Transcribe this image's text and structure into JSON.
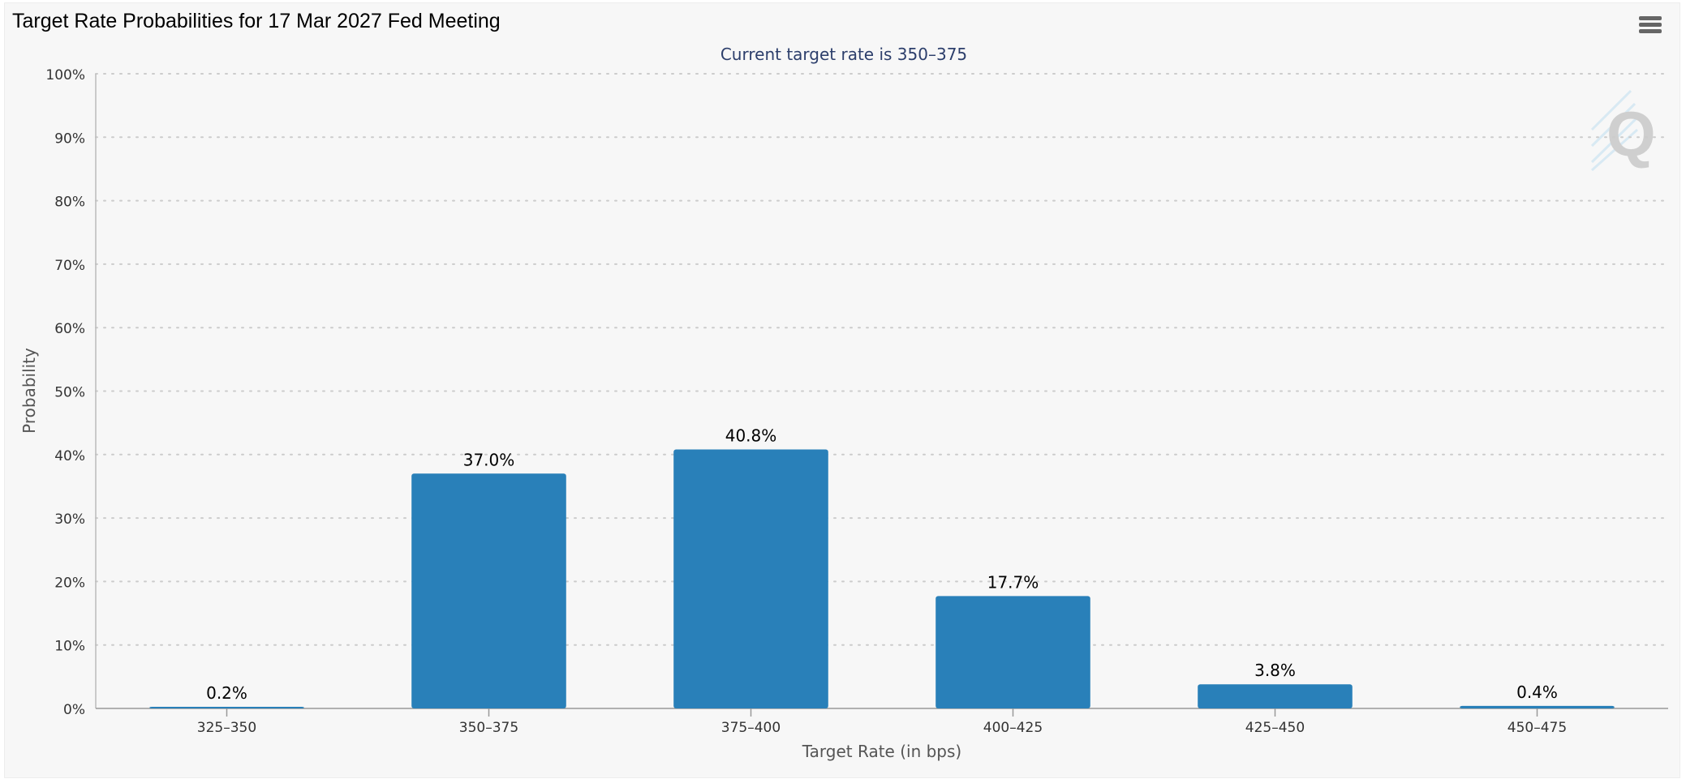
{
  "header": {
    "title": "Target Rate Probabilities for 17 Mar 2027 Fed Meeting",
    "menu_icon": "hamburger-menu-icon",
    "watermark_icon": "q-logo-icon"
  },
  "chart_data": {
    "type": "bar",
    "title": "Target Rate Probabilities for 17 Mar 2027 Fed Meeting",
    "subtitle": "Current target rate is 350–375",
    "xlabel": "Target Rate (in bps)",
    "ylabel": "Probability",
    "categories": [
      "325–350",
      "350–375",
      "375–400",
      "400–425",
      "425–450",
      "450–475"
    ],
    "values": [
      0.2,
      37.0,
      40.8,
      17.7,
      3.8,
      0.4
    ],
    "data_labels": [
      "0.2%",
      "37.0%",
      "40.8%",
      "17.7%",
      "3.8%",
      "0.4%"
    ],
    "ylim": [
      0,
      100
    ],
    "yticks": [
      0,
      10,
      20,
      30,
      40,
      50,
      60,
      70,
      80,
      90,
      100
    ],
    "ytick_labels": [
      "0%",
      "10%",
      "20%",
      "30%",
      "40%",
      "50%",
      "60%",
      "70%",
      "80%",
      "90%",
      "100%"
    ],
    "grid": "dotted horizontal",
    "legend": "none",
    "colors": {
      "bar": "#2980b9",
      "subtitle": "#2c3e6b",
      "axis_text": "#333333",
      "grid": "#cccccc"
    }
  }
}
